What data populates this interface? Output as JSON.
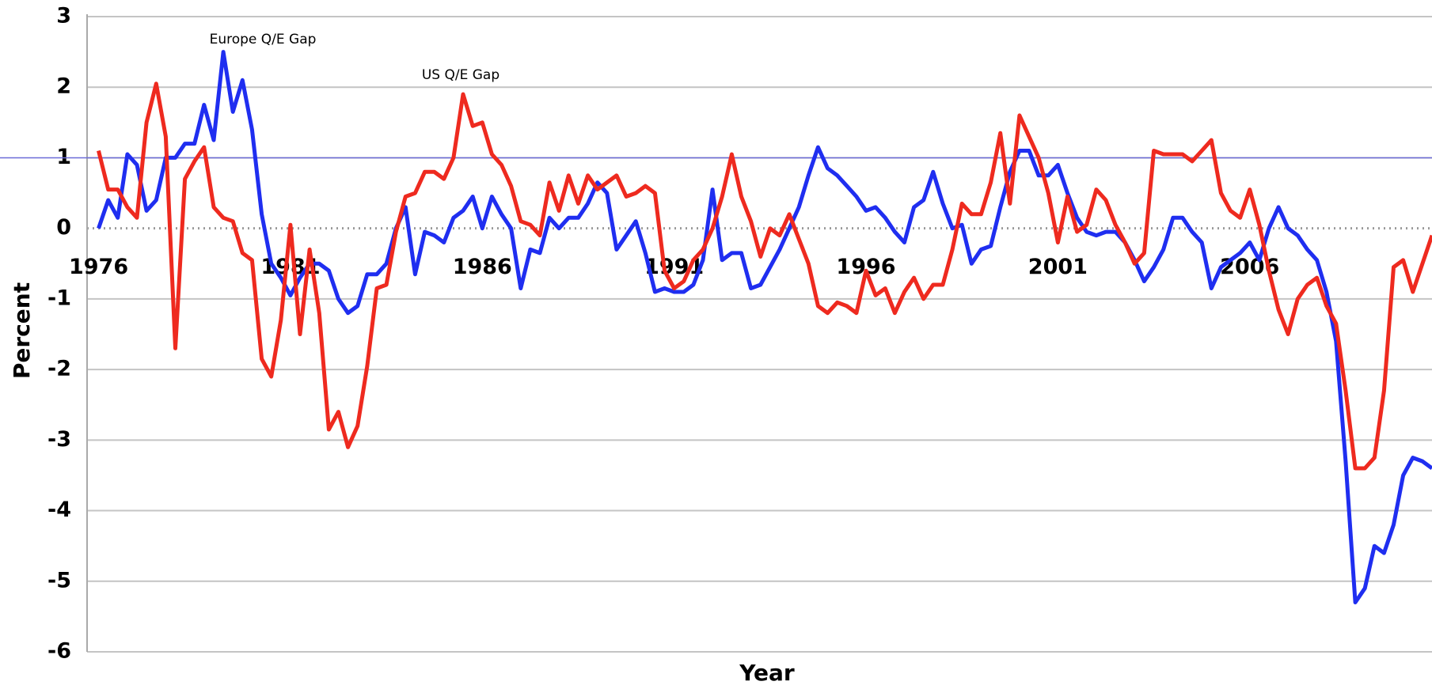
{
  "chart_data": {
    "type": "line",
    "y_label": "Percent",
    "x_label": "Year",
    "annotations": [
      "Europe Q/E Gap",
      "US Q/E Gap"
    ],
    "x": [
      1976,
      1976.25,
      1976.5,
      1976.75,
      1977,
      1977.25,
      1977.5,
      1977.75,
      1978,
      1978.25,
      1978.5,
      1978.75,
      1979,
      1979.25,
      1979.5,
      1979.75,
      1980,
      1980.25,
      1980.5,
      1980.75,
      1981,
      1981.25,
      1981.5,
      1981.75,
      1982,
      1982.25,
      1982.5,
      1982.75,
      1983,
      1983.25,
      1983.5,
      1983.75,
      1984,
      1984.25,
      1984.5,
      1984.75,
      1985,
      1985.25,
      1985.5,
      1985.75,
      1986,
      1986.25,
      1986.5,
      1986.75,
      1987,
      1987.25,
      1987.5,
      1987.75,
      1988,
      1988.25,
      1988.5,
      1988.75,
      1989,
      1989.25,
      1989.5,
      1989.75,
      1990,
      1990.25,
      1990.5,
      1990.75,
      1991,
      1991.25,
      1991.5,
      1991.75,
      1992,
      1992.25,
      1992.5,
      1992.75,
      1993,
      1993.25,
      1993.5,
      1993.75,
      1994,
      1994.25,
      1994.5,
      1994.75,
      1995,
      1995.25,
      1995.5,
      1995.75,
      1996,
      1996.25,
      1996.5,
      1996.75,
      1997,
      1997.25,
      1997.5,
      1997.75,
      1998,
      1998.25,
      1998.5,
      1998.75,
      1999,
      1999.25,
      1999.5,
      1999.75,
      2000,
      2000.25,
      2000.5,
      2000.75,
      2001,
      2001.25,
      2001.5,
      2001.75,
      2002,
      2002.25,
      2002.5,
      2002.75,
      2003,
      2003.25,
      2003.5,
      2003.75,
      2004,
      2004.25,
      2004.5,
      2004.75,
      2005,
      2005.25,
      2005.5,
      2005.75,
      2006,
      2006.25,
      2006.5,
      2006.75,
      2007,
      2007.25,
      2007.5,
      2007.75,
      2008,
      2008.25,
      2008.5,
      2008.75,
      2009,
      2009.25,
      2009.5,
      2009.75,
      2010,
      2010.25,
      2010.5,
      2010.75
    ],
    "series": [
      {
        "name": "Europe Q/E Gap",
        "color": "#1f2ef0",
        "values": [
          0,
          0.4,
          0.15,
          1.05,
          0.9,
          0.25,
          0.4,
          1.0,
          1.0,
          1.2,
          1.2,
          1.75,
          1.25,
          2.5,
          1.65,
          2.1,
          1.4,
          0.2,
          -0.5,
          -0.7,
          -0.95,
          -0.7,
          -0.5,
          -0.5,
          -0.6,
          -1.0,
          -1.2,
          -1.1,
          -0.65,
          -0.65,
          -0.5,
          0.0,
          0.3,
          -0.65,
          -0.05,
          -0.1,
          -0.2,
          0.15,
          0.25,
          0.45,
          0.0,
          0.45,
          0.2,
          0.0,
          -0.85,
          -0.3,
          -0.35,
          0.15,
          0.0,
          0.15,
          0.15,
          0.35,
          0.65,
          0.5,
          -0.3,
          -0.1,
          0.1,
          -0.35,
          -0.9,
          -0.85,
          -0.9,
          -0.9,
          -0.8,
          -0.45,
          0.55,
          -0.45,
          -0.35,
          -0.35,
          -0.85,
          -0.8,
          -0.55,
          -0.3,
          0.0,
          0.3,
          0.75,
          1.15,
          0.85,
          0.75,
          0.6,
          0.45,
          0.25,
          0.3,
          0.15,
          -0.05,
          -0.2,
          0.3,
          0.4,
          0.8,
          0.35,
          0.0,
          0.05,
          -0.5,
          -0.3,
          -0.25,
          0.3,
          0.8,
          1.1,
          1.1,
          0.75,
          0.75,
          0.9,
          0.5,
          0.15,
          -0.05,
          -0.1,
          -0.05,
          -0.05,
          -0.2,
          -0.45,
          -0.75,
          -0.55,
          -0.3,
          0.15,
          0.15,
          -0.05,
          -0.2,
          -0.85,
          -0.55,
          -0.45,
          -0.35,
          -0.2,
          -0.45,
          0.0,
          0.3,
          0.0,
          -0.1,
          -0.3,
          -0.45,
          -0.9,
          -1.6,
          -3.3,
          -5.3,
          -5.1,
          -4.5,
          -4.6,
          -4.2,
          -3.5,
          -3.25,
          -3.3,
          -3.4
        ]
      },
      {
        "name": "US Q/E Gap",
        "color": "#ee2a1f",
        "values": [
          1.1,
          0.55,
          0.55,
          0.3,
          0.15,
          1.5,
          2.05,
          1.3,
          -1.7,
          0.7,
          0.95,
          1.15,
          0.3,
          0.15,
          0.1,
          -0.35,
          -0.45,
          -1.85,
          -2.1,
          -1.3,
          0.05,
          -1.5,
          -0.3,
          -1.2,
          -2.85,
          -2.6,
          -3.1,
          -2.8,
          -1.95,
          -0.85,
          -0.8,
          -0.05,
          0.45,
          0.5,
          0.8,
          0.8,
          0.7,
          1.0,
          1.9,
          1.45,
          1.5,
          1.05,
          0.9,
          0.6,
          0.1,
          0.05,
          -0.1,
          0.65,
          0.25,
          0.75,
          0.35,
          0.75,
          0.55,
          0.65,
          0.75,
          0.45,
          0.5,
          0.6,
          0.5,
          -0.6,
          -0.85,
          -0.75,
          -0.45,
          -0.3,
          0.0,
          0.45,
          1.05,
          0.45,
          0.1,
          -0.4,
          0.0,
          -0.1,
          0.2,
          -0.15,
          -0.5,
          -1.1,
          -1.2,
          -1.05,
          -1.1,
          -1.2,
          -0.6,
          -0.95,
          -0.85,
          -1.2,
          -0.9,
          -0.7,
          -1.0,
          -0.8,
          -0.8,
          -0.3,
          0.35,
          0.2,
          0.2,
          0.65,
          1.35,
          0.35,
          1.6,
          1.3,
          1.0,
          0.5,
          -0.2,
          0.45,
          -0.05,
          0.05,
          0.55,
          0.4,
          0.05,
          -0.2,
          -0.5,
          -0.35,
          1.1,
          1.05,
          1.05,
          1.05,
          0.95,
          1.1,
          1.25,
          0.5,
          0.25,
          0.15,
          0.55,
          0.05,
          -0.6,
          -1.15,
          -1.5,
          -1.0,
          -0.8,
          -0.7,
          -1.1,
          -1.35,
          -2.3,
          -3.4,
          -3.4,
          -3.25,
          -2.3,
          -0.55,
          -0.45,
          -0.9,
          -0.5,
          -0.1
        ]
      }
    ],
    "xlim": [
      1975.7,
      2010.75
    ],
    "xticks": [
      1976,
      1981,
      1986,
      1991,
      1996,
      2001,
      2006
    ],
    "ylim": [
      -6,
      3
    ],
    "yticks": [
      -6,
      -5,
      -4,
      -3,
      -2,
      -1,
      0,
      1,
      2,
      3
    ],
    "grid": true,
    "reference_line": {
      "value": 1,
      "color": "#6b6bd8"
    }
  }
}
